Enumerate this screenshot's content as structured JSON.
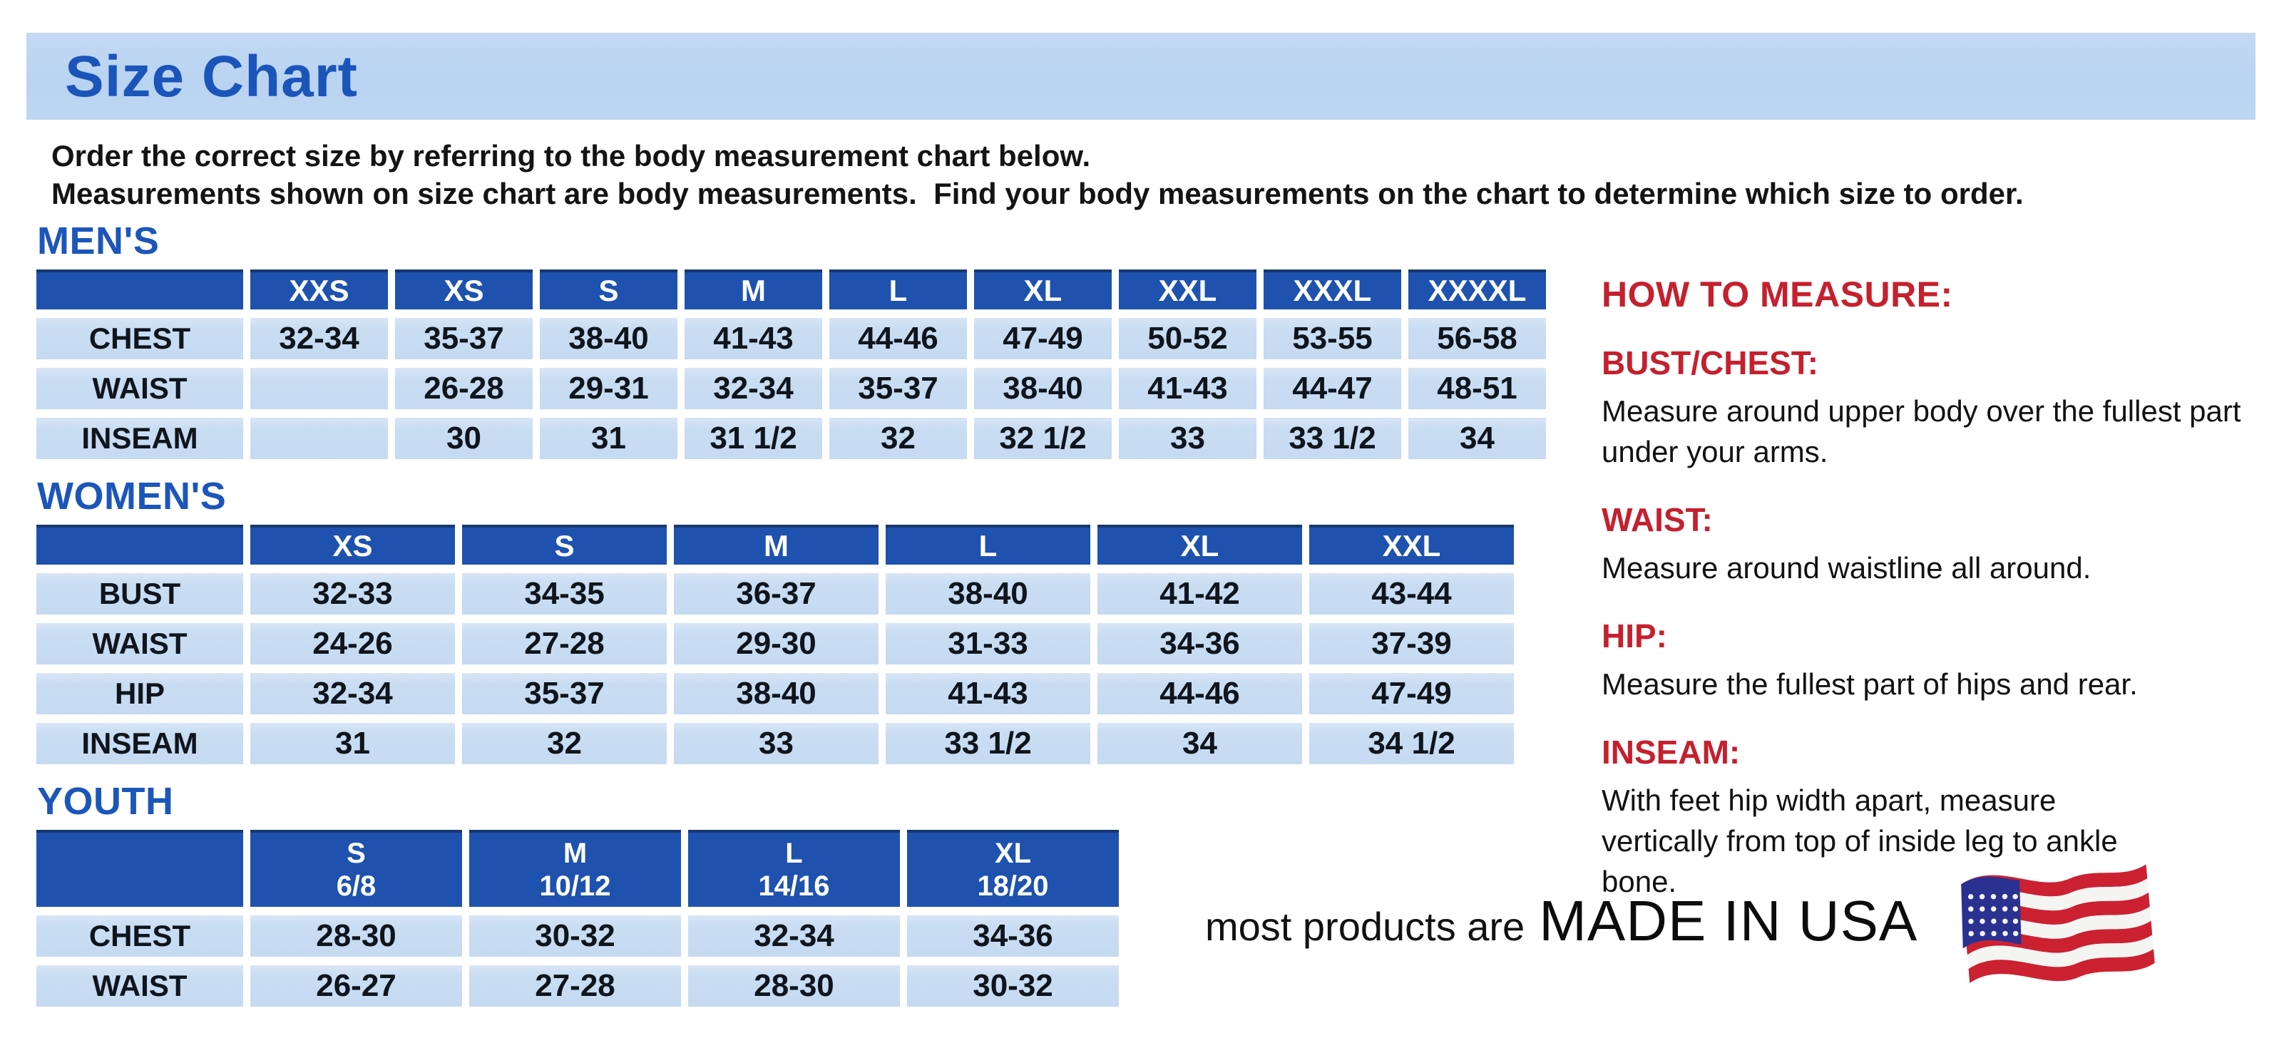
{
  "header": {
    "title": "Size Chart",
    "band_color": "#bcd5f2",
    "title_color": "#1b55ba"
  },
  "intro": {
    "line1": "Order the correct size by referring to the body measurement chart below.",
    "line2": "Measurements shown on size chart are body measurements.  Find your body measurements on the chart to determine which size to order."
  },
  "tables": {
    "mens": {
      "heading": "MEN'S",
      "columns": [
        "XXS",
        "XS",
        "S",
        "M",
        "L",
        "XL",
        "XXL",
        "XXXL",
        "XXXXL"
      ],
      "rows": [
        {
          "label": "CHEST",
          "values": [
            "32-34",
            "35-37",
            "38-40",
            "41-43",
            "44-46",
            "47-49",
            "50-52",
            "53-55",
            "56-58"
          ]
        },
        {
          "label": "WAIST",
          "values": [
            "",
            "26-28",
            "29-31",
            "32-34",
            "35-37",
            "38-40",
            "41-43",
            "44-47",
            "48-51"
          ]
        },
        {
          "label": "INSEAM",
          "values": [
            "",
            "30",
            "31",
            "31 1/2",
            "32",
            "32 1/2",
            "33",
            "33 1/2",
            "34"
          ]
        }
      ]
    },
    "womens": {
      "heading": "WOMEN'S",
      "columns": [
        "XS",
        "S",
        "M",
        "L",
        "XL",
        "XXL"
      ],
      "rows": [
        {
          "label": "BUST",
          "values": [
            "32-33",
            "34-35",
            "36-37",
            "38-40",
            "41-42",
            "43-44"
          ]
        },
        {
          "label": "WAIST",
          "values": [
            "24-26",
            "27-28",
            "29-30",
            "31-33",
            "34-36",
            "37-39"
          ]
        },
        {
          "label": "HIP",
          "values": [
            "32-34",
            "35-37",
            "38-40",
            "41-43",
            "44-46",
            "47-49"
          ]
        },
        {
          "label": "INSEAM",
          "values": [
            "31",
            "32",
            "33",
            "33 1/2",
            "34",
            "34 1/2"
          ]
        }
      ]
    },
    "youth": {
      "heading": "YOUTH",
      "columns": [
        "S\n6/8",
        "M\n10/12",
        "L\n14/16",
        "XL\n18/20"
      ],
      "rows": [
        {
          "label": "CHEST",
          "values": [
            "28-30",
            "30-32",
            "32-34",
            "34-36"
          ]
        },
        {
          "label": "WAIST",
          "values": [
            "26-27",
            "27-28",
            "28-30",
            "30-32"
          ]
        }
      ]
    }
  },
  "how_to_measure": {
    "heading": "HOW TO MEASURE:",
    "items": [
      {
        "label": "BUST/CHEST:",
        "text": "Measure around upper body over the fullest part under your arms."
      },
      {
        "label": "WAIST:",
        "text": "Measure around waistline all around."
      },
      {
        "label": "HIP:",
        "text": "Measure the fullest part of hips and rear."
      },
      {
        "label": "INSEAM:",
        "text": "With feet hip width apart, measure vertically from top of inside leg to ankle bone."
      }
    ]
  },
  "footer": {
    "prefix": "most products are",
    "emphasis": "MADE IN USA",
    "flag_icon": "usa-flag-icon"
  },
  "colors": {
    "table_header_bg": "#1e52ae",
    "table_header_text": "#ffffff",
    "table_cell_bg": "#c8dcf2",
    "heading_blue": "#1c56ba",
    "accent_red": "#c5202e",
    "flag_red": "#cc2131",
    "flag_navy": "#2a3190"
  }
}
